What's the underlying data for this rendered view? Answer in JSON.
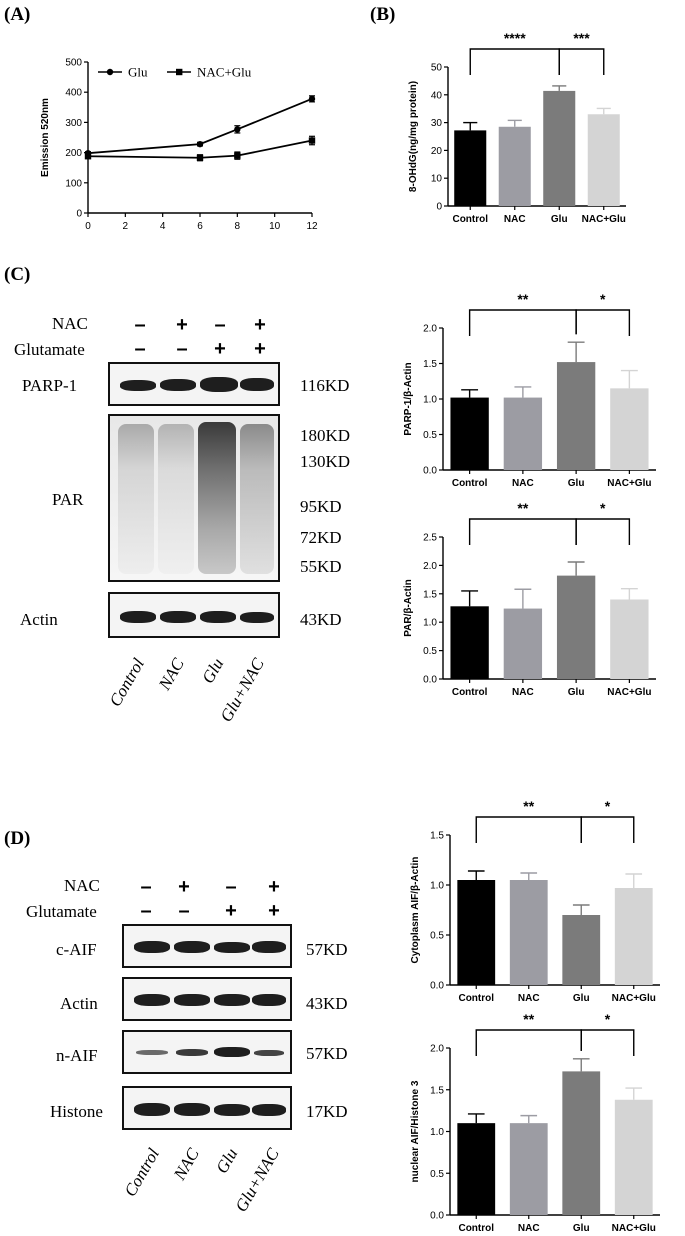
{
  "panels": {
    "A": "(A)",
    "B": "(B)",
    "C": "(C)",
    "D": "(D)"
  },
  "blots": {
    "C": {
      "row_labels": {
        "nac": "NAC",
        "glutamate": "Glutamate"
      },
      "nac_signs": [
        "–",
        "+",
        "–",
        "+"
      ],
      "glu_signs": [
        "–",
        "–",
        "+",
        "+"
      ],
      "bands": {
        "parp1": "PARP-1",
        "par": "PAR",
        "actin": "Actin"
      },
      "sizes": {
        "s116": "116KD",
        "s180": "180KD",
        "s130": "130KD",
        "s95": "95KD",
        "s72": "72KD",
        "s55": "55KD",
        "s43": "43KD"
      },
      "lanes": [
        "Control",
        "NAC",
        "Glu",
        "Glu+NAC"
      ]
    },
    "D": {
      "row_labels": {
        "nac": "NAC",
        "glutamate": "Glutamate"
      },
      "nac_signs": [
        "–",
        "+",
        "–",
        "+"
      ],
      "glu_signs": [
        "–",
        "–",
        "+",
        "+"
      ],
      "bands": {
        "caif": "c-AIF",
        "actin": "Actin",
        "naif": "n-AIF",
        "histone": "Histone"
      },
      "sizes": {
        "s57a": "57KD",
        "s43": "43KD",
        "s57b": "57KD",
        "s17": "17KD"
      },
      "lanes": [
        "Control",
        "NAC",
        "Glu",
        "Glu+NAC"
      ]
    }
  },
  "chart_data": [
    {
      "panel": "A",
      "type": "line",
      "title": "",
      "xlabel": "",
      "ylabel": "Emission 520nm",
      "xlim": [
        0,
        12
      ],
      "ylim": [
        0,
        500
      ],
      "xticks": [
        "0",
        "2",
        "4",
        "6",
        "8",
        "10",
        "12"
      ],
      "yticks": [
        "0",
        "100",
        "200",
        "300",
        "400",
        "500"
      ],
      "legend_position": "top-left",
      "series": [
        {
          "name": "Glu",
          "marker": "circle",
          "x": [
            0,
            6,
            8,
            12
          ],
          "y": [
            198,
            228,
            277,
            378
          ],
          "err": [
            5,
            6,
            12,
            10
          ]
        },
        {
          "name": "NAC+Glu",
          "marker": "square",
          "x": [
            0,
            6,
            8,
            12
          ],
          "y": [
            188,
            183,
            190,
            240
          ],
          "err": [
            6,
            10,
            12,
            14
          ]
        }
      ]
    },
    {
      "panel": "B",
      "type": "bar",
      "ylabel": "8-OHdG(ng/mg protein)",
      "ylim": [
        0,
        50
      ],
      "yticks": [
        "0",
        "10",
        "20",
        "30",
        "40",
        "50"
      ],
      "categories": [
        "Control",
        "NAC",
        "Glu",
        "NAC+Glu"
      ],
      "values": [
        27.2,
        28.5,
        41.4,
        33.0
      ],
      "errors": [
        2.8,
        2.3,
        1.8,
        2.1
      ],
      "colors": [
        "#000000",
        "#9c9ca3",
        "#7b7b7b",
        "#d4d4d4"
      ],
      "significance": [
        {
          "from": 0,
          "to": 2,
          "label": "****"
        },
        {
          "from": 2,
          "to": 3,
          "label": "***"
        }
      ]
    },
    {
      "panel": "C-top",
      "type": "bar",
      "ylabel": "PARP-1/β-Actin",
      "ylim": [
        0,
        2.0
      ],
      "yticks": [
        "0.0",
        "0.5",
        "1.0",
        "1.5",
        "2.0"
      ],
      "categories": [
        "Control",
        "NAC",
        "Glu",
        "NAC+Glu"
      ],
      "values": [
        1.02,
        1.02,
        1.52,
        1.15
      ],
      "errors": [
        0.11,
        0.15,
        0.28,
        0.25
      ],
      "colors": [
        "#000000",
        "#9c9ca3",
        "#7b7b7b",
        "#d4d4d4"
      ],
      "significance": [
        {
          "from": 0,
          "to": 2,
          "label": "**"
        },
        {
          "from": 2,
          "to": 3,
          "label": "*"
        }
      ]
    },
    {
      "panel": "C-bottom",
      "type": "bar",
      "ylabel": "PAR/β-Actin",
      "ylim": [
        0,
        2.5
      ],
      "yticks": [
        "0.0",
        "0.5",
        "1.0",
        "1.5",
        "2.0",
        "2.5"
      ],
      "categories": [
        "Control",
        "NAC",
        "Glu",
        "NAC+Glu"
      ],
      "values": [
        1.28,
        1.24,
        1.82,
        1.4
      ],
      "errors": [
        0.27,
        0.34,
        0.24,
        0.19
      ],
      "colors": [
        "#000000",
        "#9c9ca3",
        "#7b7b7b",
        "#d4d4d4"
      ],
      "significance": [
        {
          "from": 0,
          "to": 2,
          "label": "**"
        },
        {
          "from": 2,
          "to": 3,
          "label": "*"
        }
      ]
    },
    {
      "panel": "D-top",
      "type": "bar",
      "ylabel": "Cytoplasm AIF/β-Actin",
      "ylim": [
        0,
        1.5
      ],
      "yticks": [
        "0.0",
        "0.5",
        "1.0",
        "1.5"
      ],
      "categories": [
        "Control",
        "NAC",
        "Glu",
        "NAC+Glu"
      ],
      "values": [
        1.05,
        1.05,
        0.7,
        0.97
      ],
      "errors": [
        0.09,
        0.07,
        0.1,
        0.14
      ],
      "colors": [
        "#000000",
        "#9c9ca3",
        "#7b7b7b",
        "#d4d4d4"
      ],
      "significance": [
        {
          "from": 0,
          "to": 2,
          "label": "**"
        },
        {
          "from": 2,
          "to": 3,
          "label": "*"
        }
      ]
    },
    {
      "panel": "D-bottom",
      "type": "bar",
      "ylabel": "nuclear AIF/Histone 3",
      "ylim": [
        0,
        2.0
      ],
      "yticks": [
        "0.0",
        "0.5",
        "1.0",
        "1.5",
        "2.0"
      ],
      "categories": [
        "Control",
        "NAC",
        "Glu",
        "NAC+Glu"
      ],
      "values": [
        1.1,
        1.1,
        1.72,
        1.38
      ],
      "errors": [
        0.11,
        0.09,
        0.15,
        0.14
      ],
      "colors": [
        "#000000",
        "#9c9ca3",
        "#7b7b7b",
        "#d4d4d4"
      ],
      "significance": [
        {
          "from": 0,
          "to": 2,
          "label": "**"
        },
        {
          "from": 2,
          "to": 3,
          "label": "*"
        }
      ]
    }
  ]
}
